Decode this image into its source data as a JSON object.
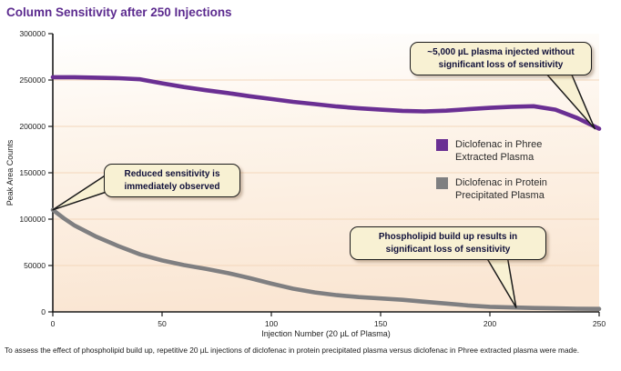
{
  "chart_data": {
    "type": "line",
    "title": "Column Sensitivity after 250 Injections",
    "xlabel": "Injection Number (20 µL of Plasma)",
    "ylabel": "Peak Area Counts",
    "xlim": [
      0,
      250
    ],
    "ylim": [
      0,
      300000
    ],
    "xticks": [
      0,
      50,
      100,
      150,
      200,
      250
    ],
    "yticks": [
      0,
      50000,
      100000,
      150000,
      200000,
      250000,
      300000
    ],
    "grid": "horizontal",
    "legend_position": "inside-right",
    "series": [
      {
        "name": "Diclofenac in Phree Extracted Plasma",
        "color": "#6A2F93",
        "x": [
          0,
          10,
          20,
          30,
          40,
          50,
          60,
          70,
          80,
          90,
          100,
          110,
          120,
          130,
          140,
          150,
          160,
          170,
          180,
          190,
          200,
          210,
          220,
          230,
          240,
          250
        ],
        "y": [
          253000,
          253000,
          252500,
          252000,
          250800,
          246500,
          242500,
          239000,
          236000,
          232500,
          229500,
          226500,
          224000,
          221500,
          219500,
          218000,
          216800,
          216200,
          217000,
          218500,
          220000,
          221200,
          221800,
          218000,
          209000,
          197500
        ]
      },
      {
        "name": "Diclofenac in Protein Precipitated Plasma",
        "color": "#7F7F81",
        "x": [
          0,
          5,
          10,
          20,
          30,
          40,
          50,
          60,
          70,
          80,
          90,
          100,
          110,
          120,
          130,
          140,
          150,
          160,
          170,
          180,
          190,
          200,
          210,
          220,
          230,
          240,
          250
        ],
        "y": [
          110000,
          101000,
          93000,
          81000,
          71000,
          62000,
          55500,
          50500,
          46500,
          42000,
          36500,
          30500,
          25000,
          21000,
          18000,
          16000,
          14500,
          13000,
          11000,
          9000,
          7000,
          5500,
          4800,
          4200,
          3800,
          3400,
          3200
        ]
      }
    ],
    "annotations": [
      {
        "text": "~5,000 µL plasma injected without significant loss of sensitivity",
        "points_to": {
          "x": 248,
          "y": 197500
        }
      },
      {
        "text": "Reduced sensitivity is immediately observed",
        "points_to": {
          "x": 0,
          "y": 110000
        }
      },
      {
        "text": "Phospholipid build up results in significant loss of sensitivity",
        "points_to": {
          "x": 212,
          "y": 4800
        }
      }
    ]
  },
  "footer": {
    "note": "To assess the effect of phospholipid build up, repetitive 20 µL injections of diclofenac in protein precipitated plasma versus diclofenac in Phree extracted plasma were made."
  },
  "palette": {
    "title": "#5C2B8F",
    "callout_bg": "#F8F1D3",
    "callout_border": "#1B1B1B",
    "plot_bg_top": "#FFFFFF",
    "plot_bg_mid": "#FDF4EA",
    "plot_bg_bottom": "#FAE6D3",
    "gridline": "#F3D7BB",
    "axis": "#1A1A1A"
  }
}
